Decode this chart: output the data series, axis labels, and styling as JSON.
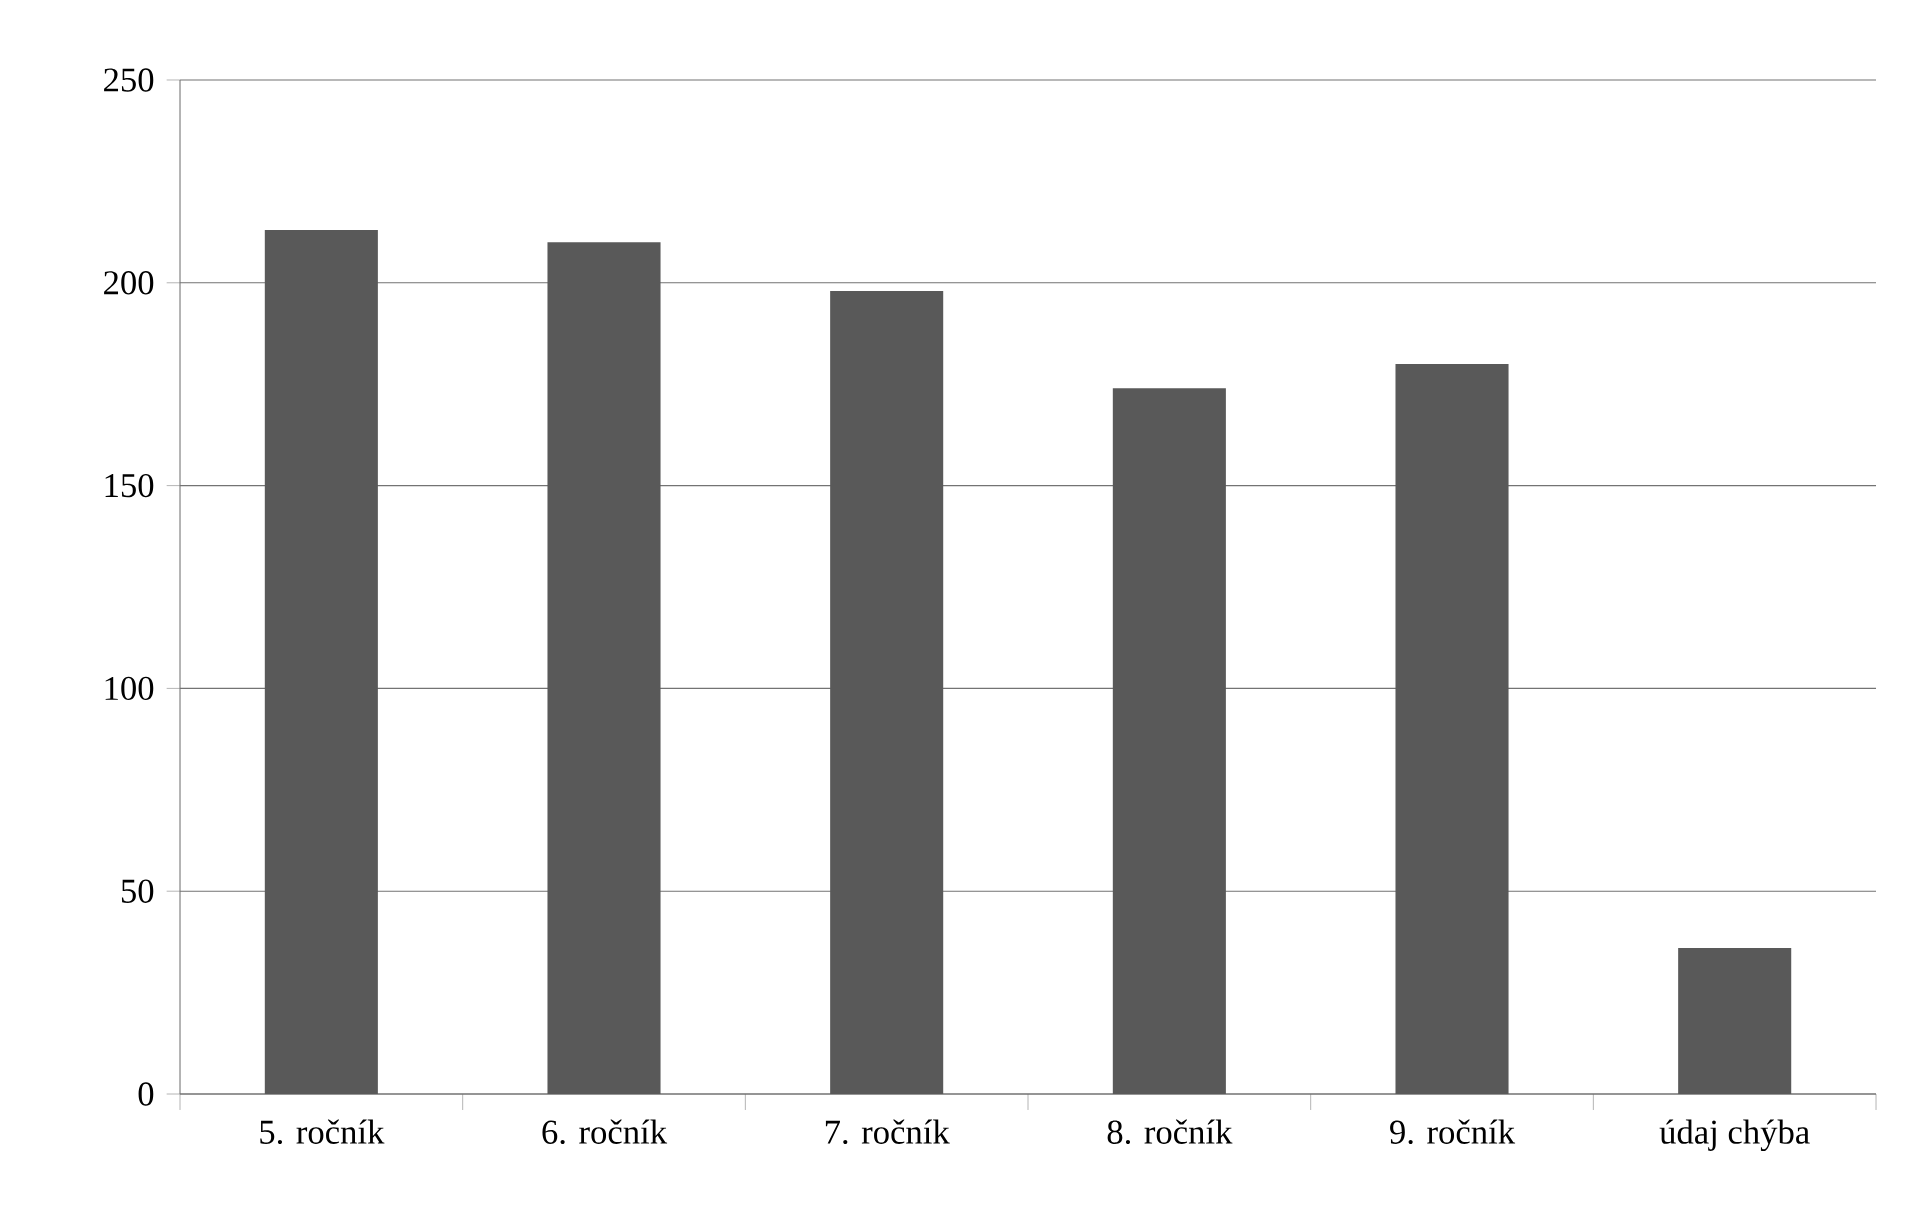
{
  "chart_data": {
    "type": "bar",
    "categories": [
      "5. ročník",
      "6. ročník",
      "7. ročník",
      "8. ročník",
      "9. ročník",
      "údaj chýba"
    ],
    "values": [
      213,
      210,
      198,
      174,
      180,
      36
    ],
    "color": "#595959",
    "ylim": [
      0,
      250
    ],
    "yticks": [
      0,
      50,
      100,
      150,
      200,
      250
    ],
    "grid": "y"
  }
}
